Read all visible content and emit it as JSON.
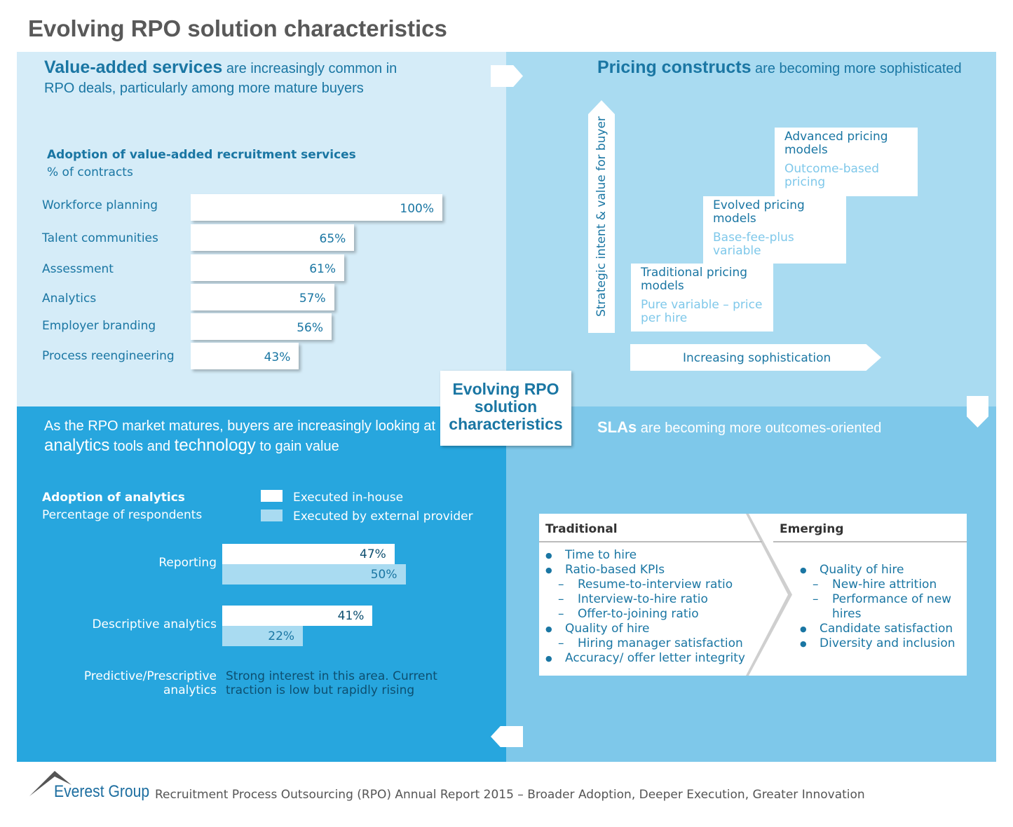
{
  "title": "Evolving RPO solution characteristics",
  "center": "Evolving RPO solution characteristics",
  "q1": {
    "head_bold": "Value-added services",
    "head_rest": " are increasingly common in RPO deals, particularly among more mature buyers",
    "chart_title": "Adoption of value-added recruitment services",
    "chart_sub": "% of contracts"
  },
  "q2": {
    "head_bold": "Pricing constructs",
    "head_rest": " are becoming more sophisticated",
    "y_axis": "Strategic intent & value for buyer",
    "x_axis": "Increasing sophistication",
    "steps": [
      {
        "title": "Traditional pricing models",
        "sub": "Pure variable – price per hire"
      },
      {
        "title": "Evolved pricing models",
        "sub": "Base-fee-plus variable"
      },
      {
        "title": "Advanced pricing models",
        "sub": "Outcome-based pricing"
      }
    ]
  },
  "q3": {
    "head_a": "As the RPO market matures, buyers are increasingly looking at ",
    "head_b": "analytics",
    "head_c": " tools and ",
    "head_d": "technology",
    "head_e": " to gain value",
    "chart_title": "Adoption of analytics",
    "chart_sub": "Percentage of respondents",
    "legend": [
      "Executed in-house",
      "Executed by external provider"
    ],
    "predictive_label": "Predictive/Prescriptive analytics",
    "predictive_note": "Strong interest in this area. Current traction is low but rapidly rising"
  },
  "q4": {
    "head_bold": "SLAs",
    "head_rest": " are becoming more outcomes-oriented",
    "traditional": "Traditional",
    "emerging": "Emerging",
    "trad_items": [
      {
        "t": "Time to hire",
        "l": 1
      },
      {
        "t": "Ratio-based KPIs",
        "l": 1
      },
      {
        "t": "Resume-to-interview ratio",
        "l": 2
      },
      {
        "t": "Interview-to-hire ratio",
        "l": 2
      },
      {
        "t": "Offer-to-joining ratio",
        "l": 2
      },
      {
        "t": "Quality of hire",
        "l": 1
      },
      {
        "t": "Hiring manager satisfaction",
        "l": 2
      },
      {
        "t": "Accuracy/ offer letter integrity",
        "l": 1
      }
    ],
    "emer_items": [
      {
        "t": "Quality of hire",
        "l": 1
      },
      {
        "t": "New-hire attrition",
        "l": 2
      },
      {
        "t": "Performance of new hires",
        "l": 2
      },
      {
        "t": "Candidate satisfaction",
        "l": 1
      },
      {
        "t": "Diversity and inclusion",
        "l": 1
      }
    ]
  },
  "chart_data": [
    {
      "type": "bar",
      "title": "Adoption of value-added recruitment services",
      "ylabel": "% of contracts",
      "categories": [
        "Workforce planning",
        "Talent communities",
        "Assessment",
        "Analytics",
        "Employer branding",
        "Process reengineering"
      ],
      "values": [
        100,
        65,
        61,
        57,
        56,
        43
      ],
      "labels": [
        "100%",
        "65%",
        "61%",
        "57%",
        "56%",
        "43%"
      ]
    },
    {
      "type": "bar",
      "title": "Adoption of analytics",
      "ylabel": "Percentage of respondents",
      "categories": [
        "Reporting",
        "Descriptive analytics"
      ],
      "series": [
        {
          "name": "Executed in-house",
          "values": [
            47,
            41
          ],
          "labels": [
            "47%",
            "41%"
          ]
        },
        {
          "name": "Executed by external provider",
          "values": [
            50,
            22
          ],
          "labels": [
            "50%",
            "22%"
          ]
        }
      ]
    }
  ],
  "footer": {
    "logo": "Everest Group",
    "text": "Recruitment Process Outsourcing (RPO) Annual Report 2015 – Broader Adoption, Deeper Execution, Greater Innovation"
  },
  "colors": {
    "q1": "#d5ecf8",
    "q2": "#a9dbf1",
    "q3": "#27a6de",
    "q4": "#7ec8ea",
    "text": "#1a76a3"
  }
}
